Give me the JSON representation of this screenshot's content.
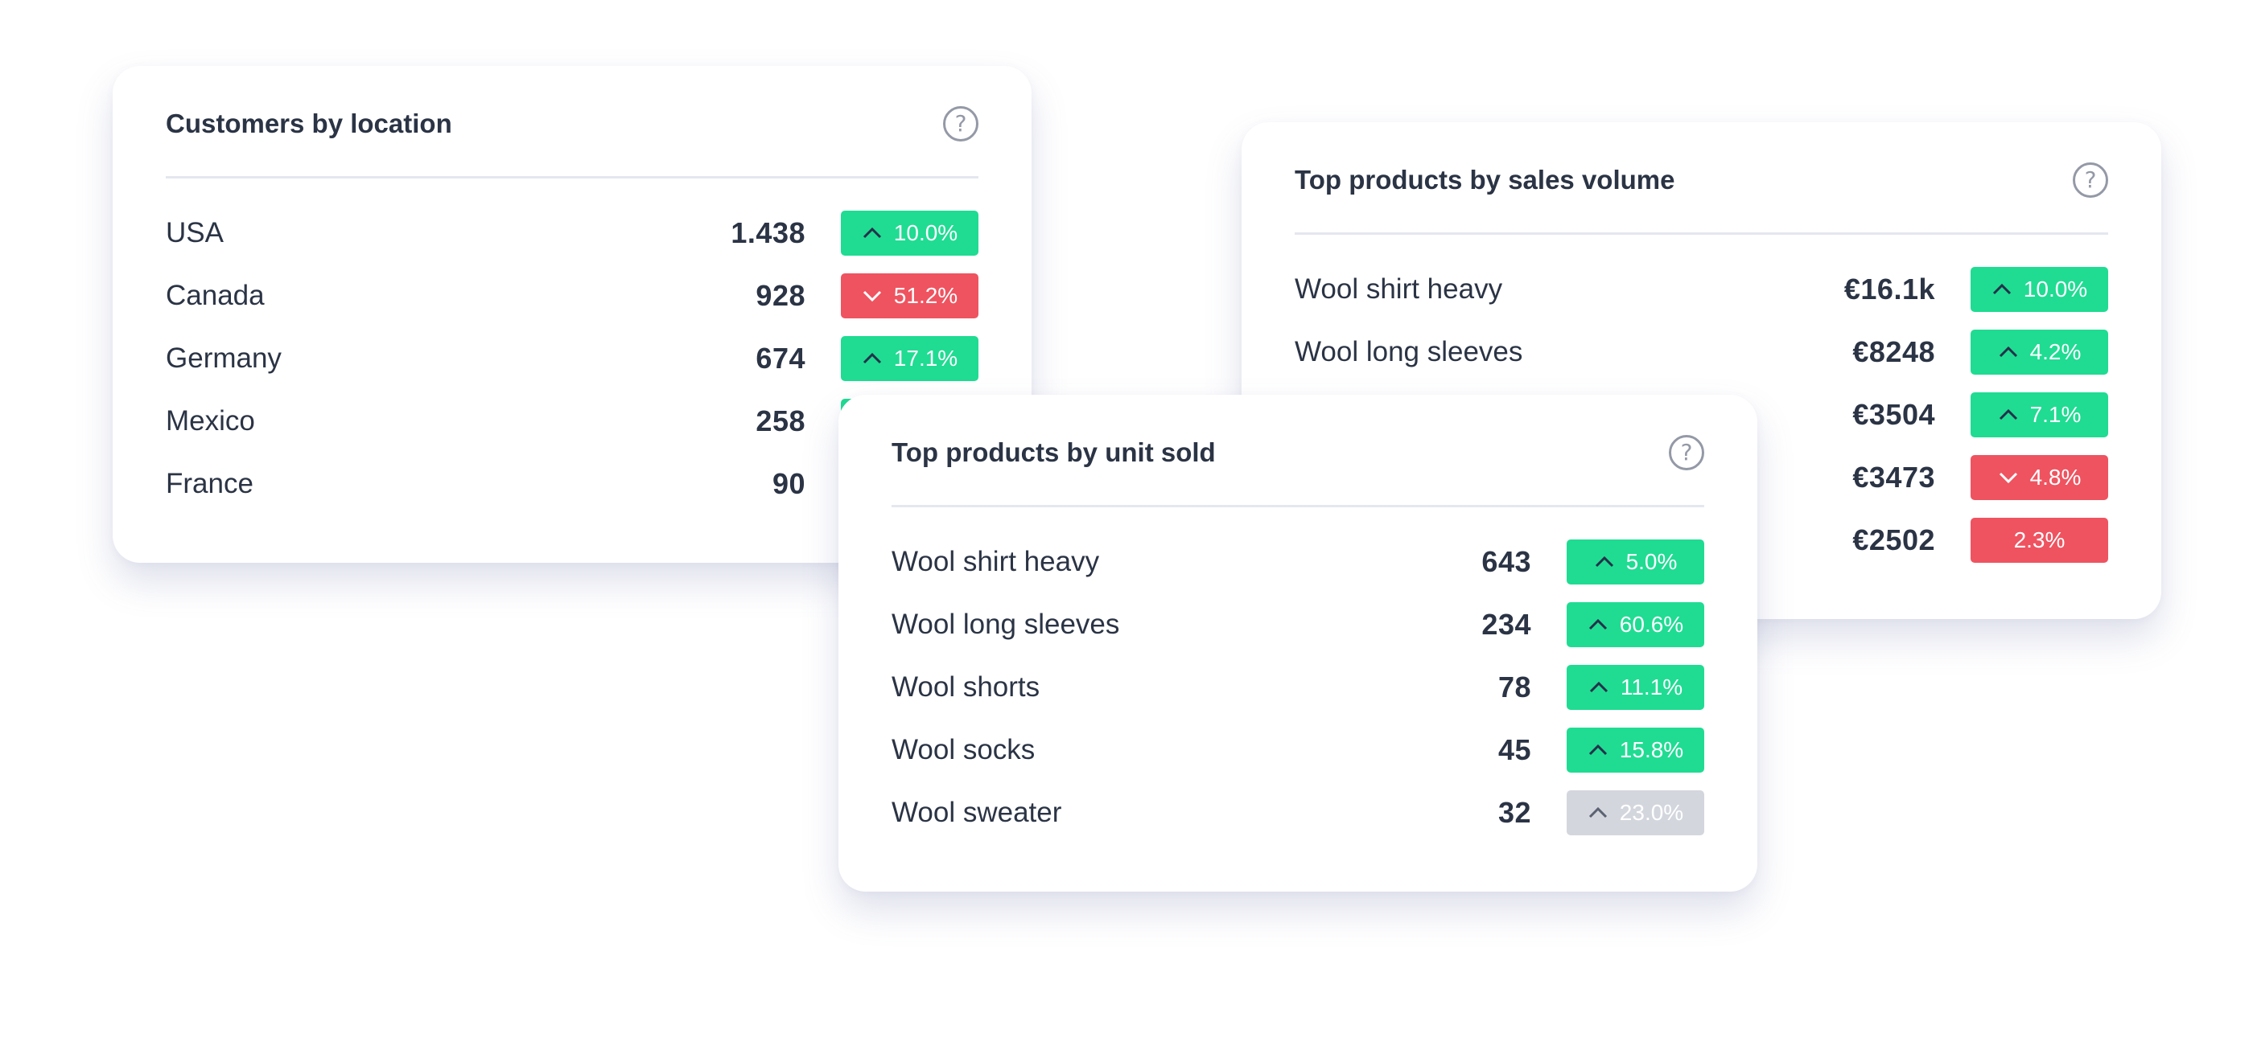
{
  "cards": {
    "location": {
      "title": "Customers by location",
      "help_icon": "question-circle-icon",
      "rows": [
        {
          "label": "USA",
          "value": "1.438",
          "change": "10.0%",
          "trend": "up"
        },
        {
          "label": "Canada",
          "value": "928",
          "change": "51.2%",
          "trend": "down"
        },
        {
          "label": "Germany",
          "value": "674",
          "change": "17.1%",
          "trend": "up"
        },
        {
          "label": "Mexico",
          "value": "258",
          "change": "",
          "trend": "up"
        },
        {
          "label": "France",
          "value": "90",
          "change": "",
          "trend": "up"
        }
      ]
    },
    "sales": {
      "title": "Top products by sales volume",
      "help_icon": "question-circle-icon",
      "rows": [
        {
          "label": "Wool shirt heavy",
          "value": "€16.1k",
          "change": "10.0%",
          "trend": "up"
        },
        {
          "label": "Wool long sleeves",
          "value": "€8248",
          "change": "4.2%",
          "trend": "up"
        },
        {
          "label": "",
          "value": "€3504",
          "change": "7.1%",
          "trend": "up"
        },
        {
          "label": "",
          "value": "€3473",
          "change": "4.8%",
          "trend": "down"
        },
        {
          "label": "",
          "value": "€2502",
          "change": "2.3%",
          "trend": "down"
        }
      ]
    },
    "units": {
      "title": "Top products by unit sold",
      "help_icon": "question-circle-icon",
      "rows": [
        {
          "label": "Wool shirt heavy",
          "value": "643",
          "change": "5.0%",
          "trend": "up"
        },
        {
          "label": "Wool long sleeves",
          "value": "234",
          "change": "60.6%",
          "trend": "up"
        },
        {
          "label": "Wool shorts",
          "value": "78",
          "change": "11.1%",
          "trend": "up"
        },
        {
          "label": "Wool socks",
          "value": "45",
          "change": "15.8%",
          "trend": "up"
        },
        {
          "label": "Wool sweater",
          "value": "32",
          "change": "23.0%",
          "trend": "neutral"
        }
      ]
    }
  },
  "colors": {
    "up": "#1fdc92",
    "down": "#ef5360",
    "neutral": "#d3d6dd",
    "text": "#2b3445"
  }
}
